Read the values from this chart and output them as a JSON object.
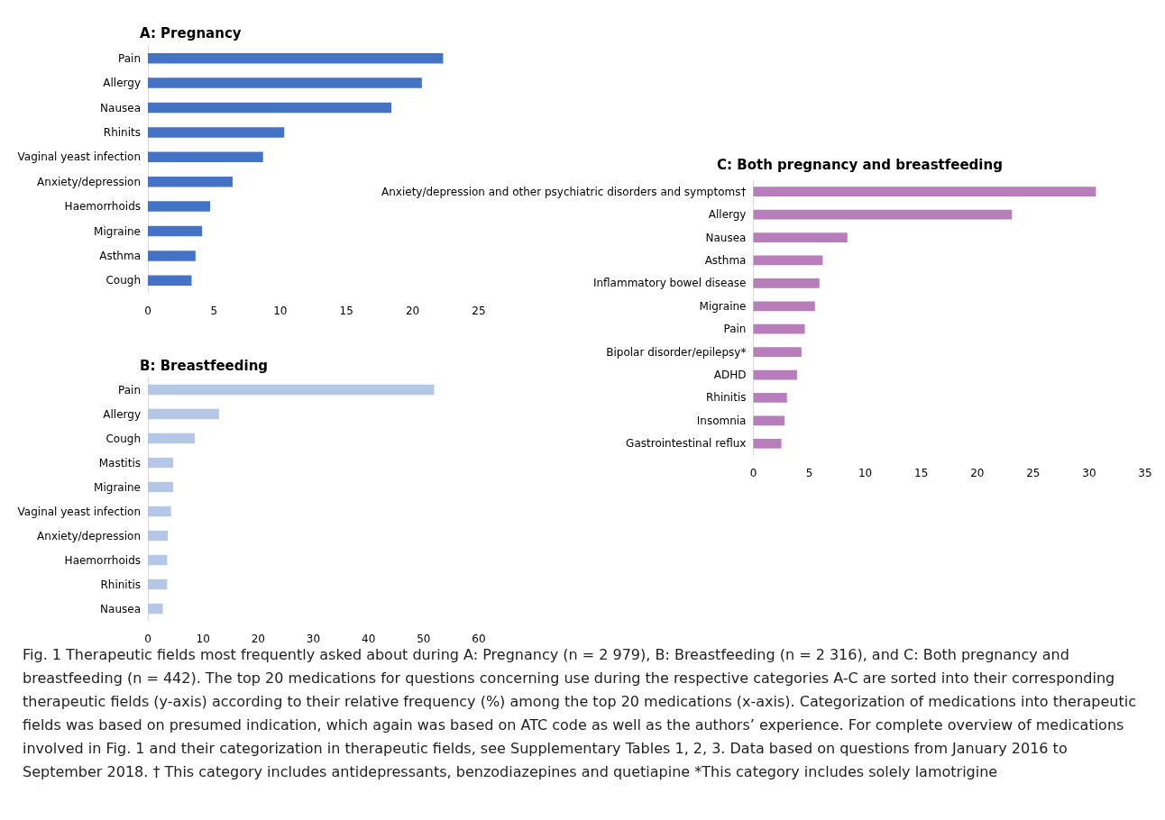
{
  "chart_data": [
    {
      "type": "bar",
      "orientation": "horizontal",
      "title": "A: Pregnancy",
      "categories": [
        "Pain",
        "Allergy",
        "Nausea",
        "Rhinits",
        "Vaginal yeast infection",
        "Anxiety/depression",
        "Haemorrhoids",
        "Migraine",
        "Asthma",
        "Cough"
      ],
      "values": [
        22.3,
        20.7,
        18.4,
        10.3,
        8.7,
        6.4,
        4.7,
        4.1,
        3.6,
        3.3
      ],
      "color": "#4472c4",
      "xlim": [
        0,
        25
      ],
      "xticks": [
        0,
        5,
        10,
        15,
        20,
        25
      ]
    },
    {
      "type": "bar",
      "orientation": "horizontal",
      "title": "B: Breastfeeding",
      "categories": [
        "Pain",
        "Allergy",
        "Cough",
        "Mastitis",
        "Migraine",
        "Vaginal yeast infection",
        "Anxiety/depression",
        "Haemorrhoids",
        "Rhinitis",
        "Nausea"
      ],
      "values": [
        51.9,
        12.9,
        8.5,
        4.6,
        4.6,
        4.2,
        3.6,
        3.5,
        3.5,
        2.7
      ],
      "color": "#b4c7e7",
      "xlim": [
        0,
        60
      ],
      "xticks": [
        0,
        10,
        20,
        30,
        40,
        50,
        60
      ]
    },
    {
      "type": "bar",
      "orientation": "horizontal",
      "title": "C: Both pregnancy and breastfeeding",
      "categories": [
        "Anxiety/depression and other psychiatric disorders and symptoms†",
        "Allergy",
        "Nausea",
        "Asthma",
        "Inflammatory bowel disease",
        "Migraine",
        "Pain",
        "Bipolar disorder/epilepsy*",
        "ADHD",
        "Rhinitis",
        "Insomnia",
        "Gastrointestinal reflux"
      ],
      "values": [
        30.6,
        23.1,
        8.4,
        6.2,
        5.9,
        5.5,
        4.6,
        4.3,
        3.9,
        3.0,
        2.8,
        2.5
      ],
      "color": "#b87dbb",
      "xlim": [
        0,
        35
      ],
      "xticks": [
        0,
        5,
        10,
        15,
        20,
        25,
        30,
        35
      ],
      "annotations": [
        "Fig. 1 Therapeutic fields most frequently asked about during A: Pregnancy (n = 2 979), B: Breastfeeding (n = 2 316), and C: Both pregnancy and breastfeeding (n = 442). The top 20 medications for questions concerning use during the respective categories A-C are sorted into their corresponding therapeutic fields (y-axis) according to their relative frequency (%) among the top 20 medications (x-axis). Categorization of medications into therapeutic fields was based on presumed indication, which again was based on ATC code as well as the authors’ experience. For complete overview of medications involved in Fig. 1 and their categorization in therapeutic fields, see Supplementary Tables 1, 2, 3. Data based on questions from January 2016 to September 2018. † This category includes antidepressants, benzodiazepines and quetiapine *This category includes solely lamotrigine"
      ]
    }
  ]
}
